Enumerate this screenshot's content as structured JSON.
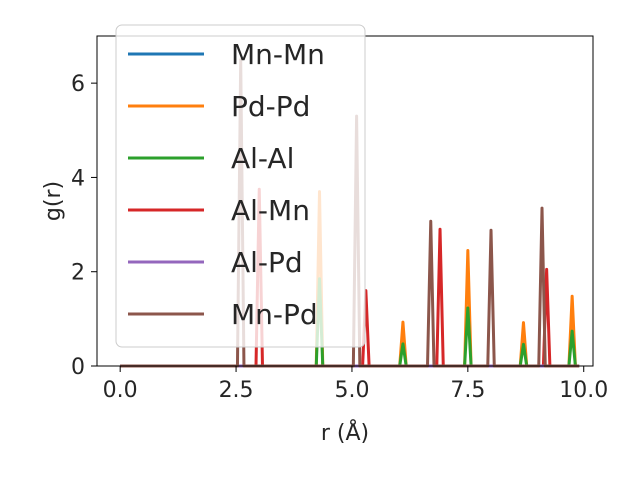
{
  "chart_data": {
    "type": "line",
    "title": "",
    "xlabel": "r (Å)",
    "ylabel": "g(r)",
    "xlim": [
      -0.5,
      10.2
    ],
    "ylim": [
      0,
      7
    ],
    "xticks": [
      0.0,
      2.5,
      5.0,
      7.5,
      10.0
    ],
    "xtick_labels": [
      "0.0",
      "2.5",
      "5.0",
      "7.5",
      "10.0"
    ],
    "yticks": [
      0,
      2,
      4,
      6
    ],
    "ytick_labels": [
      "0",
      "2",
      "4",
      "6"
    ],
    "grid": false,
    "legend_position": "upper-left",
    "peak_half_width": 0.07,
    "series": [
      {
        "name": "Mn-Mn",
        "color": "#1f77b4",
        "peaks": []
      },
      {
        "name": "Pd-Pd",
        "color": "#ff7f0e",
        "peaks": [
          [
            4.3,
            3.7
          ],
          [
            6.1,
            0.93
          ],
          [
            7.5,
            2.45
          ],
          [
            8.7,
            0.92
          ],
          [
            9.75,
            1.48
          ]
        ]
      },
      {
        "name": "Al-Al",
        "color": "#2ca02c",
        "peaks": [
          [
            4.3,
            1.85
          ],
          [
            6.1,
            0.47
          ],
          [
            7.5,
            1.23
          ],
          [
            8.7,
            0.46
          ],
          [
            9.75,
            0.74
          ]
        ]
      },
      {
        "name": "Al-Mn",
        "color": "#d62728",
        "peaks": [
          [
            3.0,
            3.75
          ],
          [
            5.3,
            1.6
          ],
          [
            6.9,
            2.9
          ],
          [
            9.2,
            2.05
          ]
        ]
      },
      {
        "name": "Al-Pd",
        "color": "#9467bd",
        "peaks": []
      },
      {
        "name": "Mn-Pd",
        "color": "#8c564b",
        "peaks": [
          [
            2.6,
            6.5
          ],
          [
            5.1,
            5.3
          ],
          [
            6.7,
            3.07
          ],
          [
            8.0,
            2.88
          ],
          [
            9.1,
            3.35
          ]
        ]
      }
    ]
  }
}
